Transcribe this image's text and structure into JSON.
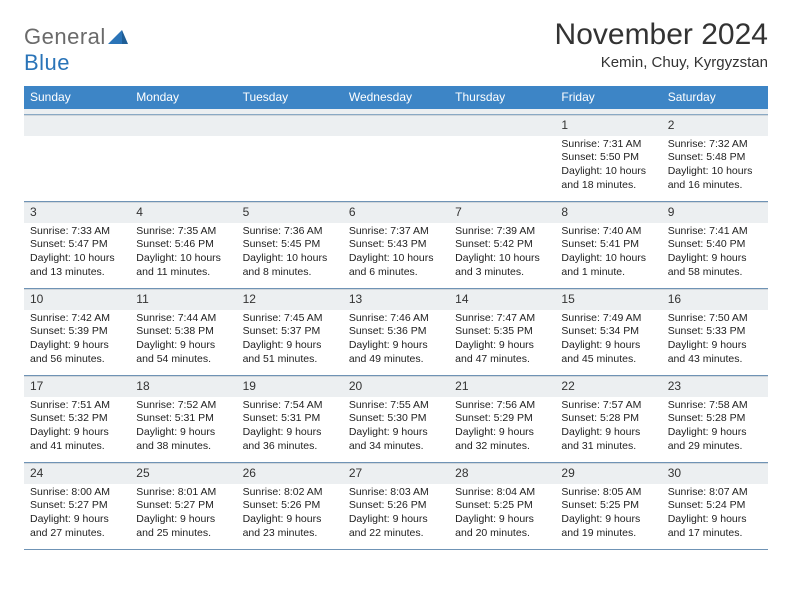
{
  "logo": {
    "word1": "General",
    "word2": "Blue"
  },
  "title": "November 2024",
  "location": "Kemin, Chuy, Kyrgyzstan",
  "colors": {
    "header_bg": "#3d85c6",
    "band_bg": "#eceff1",
    "rule": "#6f93b5",
    "logo_gray": "#6a6a6a",
    "logo_blue": "#2a74b8"
  },
  "daysOfWeek": [
    "Sunday",
    "Monday",
    "Tuesday",
    "Wednesday",
    "Thursday",
    "Friday",
    "Saturday"
  ],
  "weeks": [
    [
      null,
      null,
      null,
      null,
      null,
      {
        "n": "1",
        "sr": "Sunrise: 7:31 AM",
        "ss": "Sunset: 5:50 PM",
        "d1": "Daylight: 10 hours",
        "d2": "and 18 minutes."
      },
      {
        "n": "2",
        "sr": "Sunrise: 7:32 AM",
        "ss": "Sunset: 5:48 PM",
        "d1": "Daylight: 10 hours",
        "d2": "and 16 minutes."
      }
    ],
    [
      {
        "n": "3",
        "sr": "Sunrise: 7:33 AM",
        "ss": "Sunset: 5:47 PM",
        "d1": "Daylight: 10 hours",
        "d2": "and 13 minutes."
      },
      {
        "n": "4",
        "sr": "Sunrise: 7:35 AM",
        "ss": "Sunset: 5:46 PM",
        "d1": "Daylight: 10 hours",
        "d2": "and 11 minutes."
      },
      {
        "n": "5",
        "sr": "Sunrise: 7:36 AM",
        "ss": "Sunset: 5:45 PM",
        "d1": "Daylight: 10 hours",
        "d2": "and 8 minutes."
      },
      {
        "n": "6",
        "sr": "Sunrise: 7:37 AM",
        "ss": "Sunset: 5:43 PM",
        "d1": "Daylight: 10 hours",
        "d2": "and 6 minutes."
      },
      {
        "n": "7",
        "sr": "Sunrise: 7:39 AM",
        "ss": "Sunset: 5:42 PM",
        "d1": "Daylight: 10 hours",
        "d2": "and 3 minutes."
      },
      {
        "n": "8",
        "sr": "Sunrise: 7:40 AM",
        "ss": "Sunset: 5:41 PM",
        "d1": "Daylight: 10 hours",
        "d2": "and 1 minute."
      },
      {
        "n": "9",
        "sr": "Sunrise: 7:41 AM",
        "ss": "Sunset: 5:40 PM",
        "d1": "Daylight: 9 hours",
        "d2": "and 58 minutes."
      }
    ],
    [
      {
        "n": "10",
        "sr": "Sunrise: 7:42 AM",
        "ss": "Sunset: 5:39 PM",
        "d1": "Daylight: 9 hours",
        "d2": "and 56 minutes."
      },
      {
        "n": "11",
        "sr": "Sunrise: 7:44 AM",
        "ss": "Sunset: 5:38 PM",
        "d1": "Daylight: 9 hours",
        "d2": "and 54 minutes."
      },
      {
        "n": "12",
        "sr": "Sunrise: 7:45 AM",
        "ss": "Sunset: 5:37 PM",
        "d1": "Daylight: 9 hours",
        "d2": "and 51 minutes."
      },
      {
        "n": "13",
        "sr": "Sunrise: 7:46 AM",
        "ss": "Sunset: 5:36 PM",
        "d1": "Daylight: 9 hours",
        "d2": "and 49 minutes."
      },
      {
        "n": "14",
        "sr": "Sunrise: 7:47 AM",
        "ss": "Sunset: 5:35 PM",
        "d1": "Daylight: 9 hours",
        "d2": "and 47 minutes."
      },
      {
        "n": "15",
        "sr": "Sunrise: 7:49 AM",
        "ss": "Sunset: 5:34 PM",
        "d1": "Daylight: 9 hours",
        "d2": "and 45 minutes."
      },
      {
        "n": "16",
        "sr": "Sunrise: 7:50 AM",
        "ss": "Sunset: 5:33 PM",
        "d1": "Daylight: 9 hours",
        "d2": "and 43 minutes."
      }
    ],
    [
      {
        "n": "17",
        "sr": "Sunrise: 7:51 AM",
        "ss": "Sunset: 5:32 PM",
        "d1": "Daylight: 9 hours",
        "d2": "and 41 minutes."
      },
      {
        "n": "18",
        "sr": "Sunrise: 7:52 AM",
        "ss": "Sunset: 5:31 PM",
        "d1": "Daylight: 9 hours",
        "d2": "and 38 minutes."
      },
      {
        "n": "19",
        "sr": "Sunrise: 7:54 AM",
        "ss": "Sunset: 5:31 PM",
        "d1": "Daylight: 9 hours",
        "d2": "and 36 minutes."
      },
      {
        "n": "20",
        "sr": "Sunrise: 7:55 AM",
        "ss": "Sunset: 5:30 PM",
        "d1": "Daylight: 9 hours",
        "d2": "and 34 minutes."
      },
      {
        "n": "21",
        "sr": "Sunrise: 7:56 AM",
        "ss": "Sunset: 5:29 PM",
        "d1": "Daylight: 9 hours",
        "d2": "and 32 minutes."
      },
      {
        "n": "22",
        "sr": "Sunrise: 7:57 AM",
        "ss": "Sunset: 5:28 PM",
        "d1": "Daylight: 9 hours",
        "d2": "and 31 minutes."
      },
      {
        "n": "23",
        "sr": "Sunrise: 7:58 AM",
        "ss": "Sunset: 5:28 PM",
        "d1": "Daylight: 9 hours",
        "d2": "and 29 minutes."
      }
    ],
    [
      {
        "n": "24",
        "sr": "Sunrise: 8:00 AM",
        "ss": "Sunset: 5:27 PM",
        "d1": "Daylight: 9 hours",
        "d2": "and 27 minutes."
      },
      {
        "n": "25",
        "sr": "Sunrise: 8:01 AM",
        "ss": "Sunset: 5:27 PM",
        "d1": "Daylight: 9 hours",
        "d2": "and 25 minutes."
      },
      {
        "n": "26",
        "sr": "Sunrise: 8:02 AM",
        "ss": "Sunset: 5:26 PM",
        "d1": "Daylight: 9 hours",
        "d2": "and 23 minutes."
      },
      {
        "n": "27",
        "sr": "Sunrise: 8:03 AM",
        "ss": "Sunset: 5:26 PM",
        "d1": "Daylight: 9 hours",
        "d2": "and 22 minutes."
      },
      {
        "n": "28",
        "sr": "Sunrise: 8:04 AM",
        "ss": "Sunset: 5:25 PM",
        "d1": "Daylight: 9 hours",
        "d2": "and 20 minutes."
      },
      {
        "n": "29",
        "sr": "Sunrise: 8:05 AM",
        "ss": "Sunset: 5:25 PM",
        "d1": "Daylight: 9 hours",
        "d2": "and 19 minutes."
      },
      {
        "n": "30",
        "sr": "Sunrise: 8:07 AM",
        "ss": "Sunset: 5:24 PM",
        "d1": "Daylight: 9 hours",
        "d2": "and 17 minutes."
      }
    ]
  ]
}
